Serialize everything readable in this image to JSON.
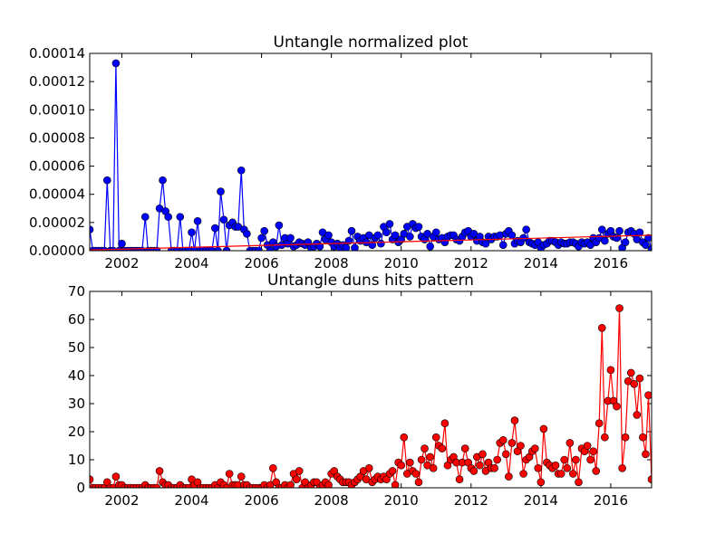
{
  "chart_data": [
    {
      "type": "line",
      "title": "Untangle normalized plot",
      "x": [
        2001.08,
        2001.17,
        2001.25,
        2001.33,
        2001.42,
        2001.5,
        2001.58,
        2001.67,
        2001.75,
        2001.83,
        2001.92,
        2002,
        2002.08,
        2002.17,
        2002.25,
        2002.33,
        2002.42,
        2002.5,
        2002.58,
        2002.67,
        2002.75,
        2002.83,
        2002.92,
        2003,
        2003.08,
        2003.17,
        2003.25,
        2003.33,
        2003.42,
        2003.5,
        2003.58,
        2003.67,
        2003.75,
        2003.83,
        2003.92,
        2004,
        2004.08,
        2004.17,
        2004.25,
        2004.33,
        2004.42,
        2004.5,
        2004.58,
        2004.67,
        2004.75,
        2004.83,
        2004.92,
        2005,
        2005.08,
        2005.17,
        2005.25,
        2005.33,
        2005.42,
        2005.5,
        2005.58,
        2005.67,
        2005.75,
        2005.83,
        2005.92,
        2006,
        2006.08,
        2006.17,
        2006.25,
        2006.33,
        2006.42,
        2006.5,
        2006.58,
        2006.67,
        2006.75,
        2006.83,
        2006.92,
        2007,
        2007.08,
        2007.17,
        2007.25,
        2007.33,
        2007.42,
        2007.5,
        2007.58,
        2007.67,
        2007.75,
        2007.83,
        2007.92,
        2008,
        2008.08,
        2008.17,
        2008.25,
        2008.33,
        2008.42,
        2008.5,
        2008.58,
        2008.67,
        2008.75,
        2008.83,
        2008.92,
        2009,
        2009.08,
        2009.17,
        2009.25,
        2009.33,
        2009.42,
        2009.5,
        2009.58,
        2009.67,
        2009.75,
        2009.83,
        2009.92,
        2010,
        2010.08,
        2010.17,
        2010.25,
        2010.33,
        2010.42,
        2010.5,
        2010.58,
        2010.67,
        2010.75,
        2010.83,
        2010.92,
        2011,
        2011.08,
        2011.17,
        2011.25,
        2011.33,
        2011.42,
        2011.5,
        2011.58,
        2011.67,
        2011.75,
        2011.83,
        2011.92,
        2012,
        2012.08,
        2012.17,
        2012.25,
        2012.33,
        2012.42,
        2012.5,
        2012.58,
        2012.67,
        2012.75,
        2012.83,
        2012.92,
        2013,
        2013.08,
        2013.17,
        2013.25,
        2013.33,
        2013.42,
        2013.5,
        2013.58,
        2013.67,
        2013.75,
        2013.83,
        2013.92,
        2014,
        2014.08,
        2014.17,
        2014.25,
        2014.33,
        2014.42,
        2014.5,
        2014.58,
        2014.67,
        2014.75,
        2014.83,
        2014.92,
        2015,
        2015.08,
        2015.17,
        2015.25,
        2015.33,
        2015.42,
        2015.5,
        2015.58,
        2015.67,
        2015.75,
        2015.83,
        2015.92,
        2016,
        2016.08,
        2016.17,
        2016.25,
        2016.33,
        2016.42,
        2016.5,
        2016.58,
        2016.67,
        2016.75,
        2016.83,
        2016.92,
        2017,
        2017.08,
        2017.17
      ],
      "series": [
        {
          "color": "#0000ff",
          "values": [
            1.5e-05,
            0,
            0,
            0,
            0,
            0,
            5e-05,
            0,
            0,
            0.000133,
            0,
            5e-06,
            0,
            0,
            0,
            0,
            0,
            0,
            0,
            2.4e-05,
            0,
            0,
            0,
            0,
            3e-05,
            5e-05,
            2.8e-05,
            2.4e-05,
            0,
            0,
            0,
            2.4e-05,
            0,
            0,
            0,
            1.3e-05,
            0,
            2.1e-05,
            0,
            0,
            0,
            0,
            0,
            1.6e-05,
            0,
            4.2e-05,
            2.2e-05,
            0,
            1.8e-05,
            2e-05,
            1.7e-05,
            1.7e-05,
            5.7e-05,
            1.5e-05,
            1.2e-05,
            0,
            0,
            0,
            0,
            9e-06,
            1.4e-05,
            4e-06,
            0,
            6e-06,
            3e-06,
            1.8e-05,
            4e-06,
            9e-06,
            5e-06,
            9e-06,
            3e-06,
            4e-06,
            6e-06,
            5e-06,
            4e-06,
            6e-06,
            2e-06,
            3e-06,
            5e-06,
            3e-06,
            1.3e-05,
            8e-06,
            1.1e-05,
            6e-06,
            3e-06,
            5e-06,
            2e-06,
            4e-06,
            2e-06,
            7e-06,
            1.4e-05,
            2e-06,
            1e-05,
            7e-06,
            9e-06,
            6e-06,
            1.1e-05,
            4e-06,
            9e-06,
            1.1e-05,
            5e-06,
            1.7e-05,
            1.3e-05,
            1.9e-05,
            8e-06,
            1.1e-05,
            6e-06,
            8e-06,
            1.2e-05,
            1.7e-05,
            1e-05,
            1.9e-05,
            1.6e-05,
            1.7e-05,
            1e-05,
            8e-06,
            1.2e-05,
            3e-06,
            1e-05,
            1.3e-05,
            8e-06,
            9e-06,
            6e-06,
            1e-05,
            1.1e-05,
            1.1e-05,
            8e-06,
            7e-06,
            1e-05,
            1.3e-05,
            1.4e-05,
            1e-05,
            1.2e-05,
            7e-06,
            1e-05,
            6e-06,
            5e-06,
            1e-05,
            8e-06,
            1e-05,
            1e-05,
            1.1e-05,
            4e-06,
            1.2e-05,
            1.4e-05,
            1.1e-05,
            5e-06,
            7e-06,
            6e-06,
            9e-06,
            1.5e-05,
            6e-06,
            5e-06,
            4e-06,
            6e-06,
            2e-06,
            4e-06,
            5e-06,
            7e-06,
            7e-06,
            6e-06,
            4e-06,
            6e-06,
            5e-06,
            5e-06,
            6e-06,
            6e-06,
            5e-06,
            3e-06,
            6e-06,
            5e-06,
            6e-06,
            4e-06,
            9e-06,
            6e-06,
            9e-06,
            1.5e-05,
            7e-06,
            1.2e-05,
            1.4e-05,
            1e-05,
            9e-06,
            1.4e-05,
            2e-06,
            6e-06,
            1.3e-05,
            1.4e-05,
            1.2e-05,
            8e-06,
            1.3e-05,
            6e-06,
            4e-06,
            9e-06,
            1e-06
          ]
        },
        {
          "color": "#ff0000",
          "markers": false,
          "x": [
            2001.08,
            2017.17
          ],
          "values": [
            5e-07,
            1.1e-05
          ]
        }
      ],
      "xlim": [
        2001.08,
        2017.17
      ],
      "xticks": [
        2002,
        2004,
        2006,
        2008,
        2010,
        2012,
        2014,
        2016
      ],
      "ylim": [
        0,
        0.00014
      ],
      "yticks": [
        {
          "value": 0,
          "label": "0.00000"
        },
        {
          "value": 2e-05,
          "label": "0.00002"
        },
        {
          "value": 4e-05,
          "label": "0.00004"
        },
        {
          "value": 6e-05,
          "label": "0.00006"
        },
        {
          "value": 8e-05,
          "label": "0.00008"
        },
        {
          "value": 0.0001,
          "label": "0.00010"
        },
        {
          "value": 0.00012,
          "label": "0.00012"
        },
        {
          "value": 0.00014,
          "label": "0.00014"
        }
      ]
    },
    {
      "type": "line",
      "title": "Untangle duns hits pattern",
      "x": [
        2001.08,
        2001.17,
        2001.25,
        2001.33,
        2001.42,
        2001.5,
        2001.58,
        2001.67,
        2001.75,
        2001.83,
        2001.92,
        2002,
        2002.08,
        2002.17,
        2002.25,
        2002.33,
        2002.42,
        2002.5,
        2002.58,
        2002.67,
        2002.75,
        2002.83,
        2002.92,
        2003,
        2003.08,
        2003.17,
        2003.25,
        2003.33,
        2003.42,
        2003.5,
        2003.58,
        2003.67,
        2003.75,
        2003.83,
        2003.92,
        2004,
        2004.08,
        2004.17,
        2004.25,
        2004.33,
        2004.42,
        2004.5,
        2004.58,
        2004.67,
        2004.75,
        2004.83,
        2004.92,
        2005,
        2005.08,
        2005.17,
        2005.25,
        2005.33,
        2005.42,
        2005.5,
        2005.58,
        2005.67,
        2005.75,
        2005.83,
        2005.92,
        2006,
        2006.08,
        2006.17,
        2006.25,
        2006.33,
        2006.42,
        2006.5,
        2006.58,
        2006.67,
        2006.75,
        2006.83,
        2006.92,
        2007,
        2007.08,
        2007.17,
        2007.25,
        2007.33,
        2007.42,
        2007.5,
        2007.58,
        2007.67,
        2007.75,
        2007.83,
        2007.92,
        2008,
        2008.08,
        2008.17,
        2008.25,
        2008.33,
        2008.42,
        2008.5,
        2008.58,
        2008.67,
        2008.75,
        2008.83,
        2008.92,
        2009,
        2009.08,
        2009.17,
        2009.25,
        2009.33,
        2009.42,
        2009.5,
        2009.58,
        2009.67,
        2009.75,
        2009.83,
        2009.92,
        2010,
        2010.08,
        2010.17,
        2010.25,
        2010.33,
        2010.42,
        2010.5,
        2010.58,
        2010.67,
        2010.75,
        2010.83,
        2010.92,
        2011,
        2011.08,
        2011.17,
        2011.25,
        2011.33,
        2011.42,
        2011.5,
        2011.58,
        2011.67,
        2011.75,
        2011.83,
        2011.92,
        2012,
        2012.08,
        2012.17,
        2012.25,
        2012.33,
        2012.42,
        2012.5,
        2012.58,
        2012.67,
        2012.75,
        2012.83,
        2012.92,
        2013,
        2013.08,
        2013.17,
        2013.25,
        2013.33,
        2013.42,
        2013.5,
        2013.58,
        2013.67,
        2013.75,
        2013.83,
        2013.92,
        2014,
        2014.08,
        2014.17,
        2014.25,
        2014.33,
        2014.42,
        2014.5,
        2014.58,
        2014.67,
        2014.75,
        2014.83,
        2014.92,
        2015,
        2015.08,
        2015.17,
        2015.25,
        2015.33,
        2015.42,
        2015.5,
        2015.58,
        2015.67,
        2015.75,
        2015.83,
        2015.92,
        2016,
        2016.08,
        2016.17,
        2016.25,
        2016.33,
        2016.42,
        2016.5,
        2016.58,
        2016.67,
        2016.75,
        2016.83,
        2016.92,
        2017,
        2017.08,
        2017.17
      ],
      "series": [
        {
          "color": "#ff0000",
          "values": [
            3,
            0,
            0,
            0,
            0,
            0,
            2,
            0,
            0,
            4,
            1,
            1,
            0,
            0,
            0,
            0,
            0,
            0,
            0,
            1,
            0,
            0,
            0,
            0,
            6,
            2,
            1,
            1,
            0,
            0,
            0,
            1,
            0,
            0,
            0,
            3,
            1,
            2,
            0,
            0,
            0,
            0,
            0,
            1,
            0,
            2,
            1,
            0,
            5,
            1,
            1,
            1,
            4,
            1,
            1,
            0,
            0,
            0,
            0,
            0,
            1,
            0,
            1,
            7,
            2,
            0,
            0,
            1,
            0,
            1,
            5,
            3,
            6,
            0,
            2,
            0,
            1,
            2,
            2,
            0,
            1,
            2,
            1,
            5,
            6,
            4,
            3,
            2,
            2,
            2,
            1,
            2,
            3,
            4,
            6,
            3,
            7,
            2,
            3,
            4,
            3,
            4,
            3,
            5,
            6,
            1,
            9,
            8,
            18,
            5,
            9,
            6,
            5,
            2,
            10,
            14,
            8,
            11,
            7,
            18,
            15,
            14,
            23,
            8,
            10,
            11,
            9,
            3,
            9,
            14,
            9,
            7,
            6,
            11,
            8,
            12,
            6,
            9,
            7,
            7,
            10,
            16,
            17,
            12,
            4,
            16,
            24,
            13,
            15,
            5,
            10,
            11,
            13,
            14,
            7,
            2,
            21,
            9,
            8,
            7,
            8,
            5,
            5,
            10,
            7,
            16,
            5,
            10,
            2,
            14,
            13,
            15,
            10,
            13,
            6,
            23,
            57,
            18,
            31,
            42,
            31,
            29,
            64,
            7,
            18,
            38,
            41,
            37,
            26,
            39,
            18,
            12,
            33,
            3
          ]
        }
      ],
      "xlim": [
        2001.08,
        2017.17
      ],
      "xticks": [
        2002,
        2004,
        2006,
        2008,
        2010,
        2012,
        2014,
        2016
      ],
      "ylim": [
        0,
        70
      ],
      "yticks": [
        0,
        10,
        20,
        30,
        40,
        50,
        60,
        70
      ]
    }
  ]
}
